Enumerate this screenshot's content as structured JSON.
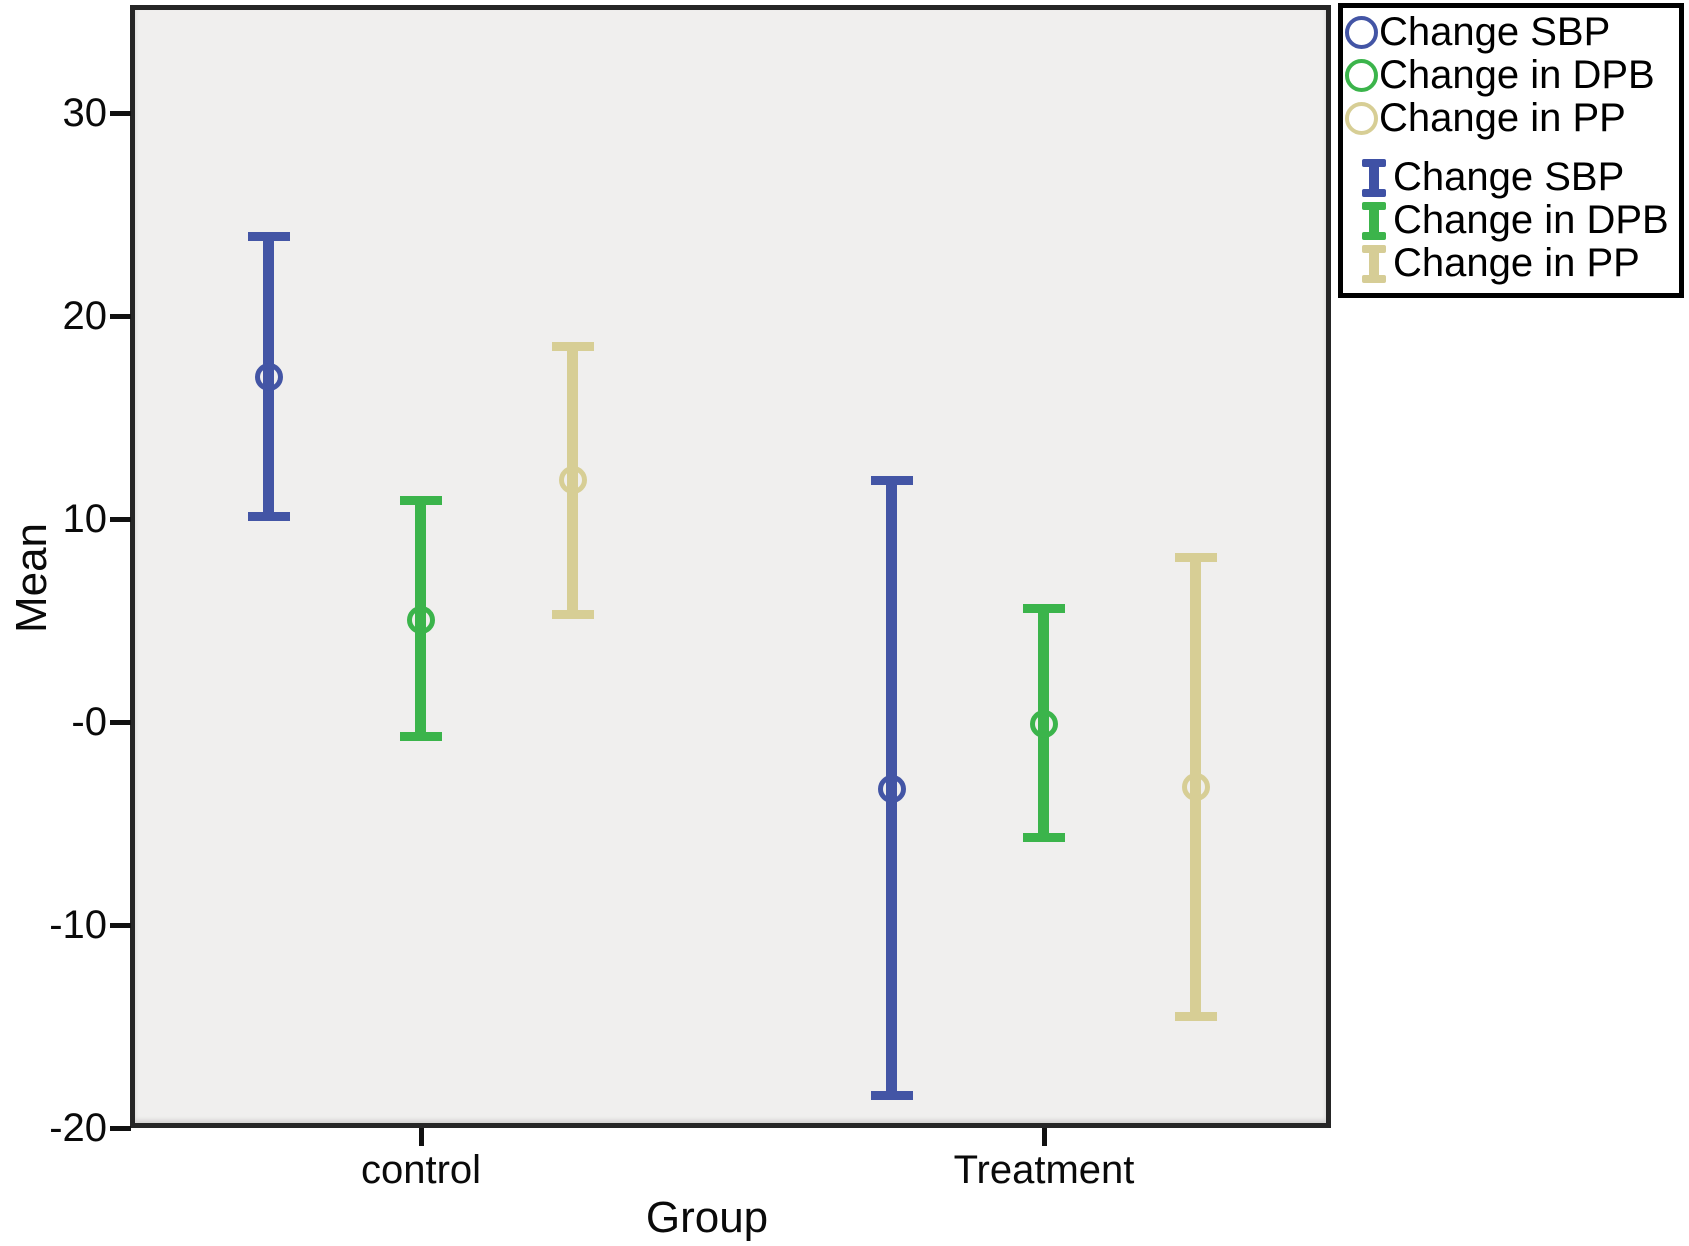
{
  "chart_data": {
    "type": "errorbar",
    "title": "",
    "xlabel": "Group",
    "ylabel": "Mean",
    "categories": [
      "control",
      "Treatment"
    ],
    "y_tick_labels": [
      "30",
      "20",
      "10",
      "-0",
      "-10",
      "-20"
    ],
    "y_tick_values": [
      30,
      20,
      10,
      0,
      -10,
      -20
    ],
    "ylim": [
      -20,
      35.3
    ],
    "grid": false,
    "plot_background": "#f0efee",
    "series": [
      {
        "name": "Change SBP",
        "color": "#4355a5",
        "points": [
          {
            "category": "control",
            "mean": 17.0,
            "low": 10.1,
            "high": 23.9
          },
          {
            "category": "Treatment",
            "mean": -3.3,
            "low": -18.4,
            "high": 11.9
          }
        ]
      },
      {
        "name": "Change in DPB",
        "color": "#3bb44b",
        "points": [
          {
            "category": "control",
            "mean": 5.0,
            "low": -0.7,
            "high": 10.9
          },
          {
            "category": "Treatment",
            "mean": -0.1,
            "low": -5.7,
            "high": 5.6
          }
        ]
      },
      {
        "name": "Change in PP",
        "color": "#d7ce95",
        "points": [
          {
            "category": "control",
            "mean": 11.9,
            "low": 5.3,
            "high": 18.5
          },
          {
            "category": "Treatment",
            "mean": -3.2,
            "low": -14.5,
            "high": 8.1
          }
        ]
      }
    ],
    "legend": {
      "position": "outside-top-right",
      "marker_entries": [
        {
          "label": "Change SBP",
          "color": "#4355a5"
        },
        {
          "label": "Change in DPB",
          "color": "#3bb44b"
        },
        {
          "label": "Change in PP",
          "color": "#d7ce95"
        }
      ],
      "errorbar_entries": [
        {
          "label": "Change SBP",
          "color": "#3f51a5"
        },
        {
          "label": "Change in DPB",
          "color": "#3cb44b"
        },
        {
          "label": "Change in PP",
          "color": "#d6cd96"
        }
      ]
    }
  }
}
